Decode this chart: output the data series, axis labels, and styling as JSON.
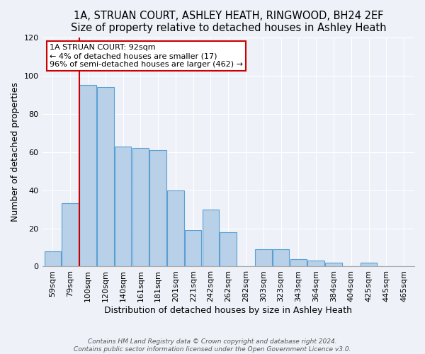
{
  "title": "1A, STRUAN COURT, ASHLEY HEATH, RINGWOOD, BH24 2EF",
  "subtitle": "Size of property relative to detached houses in Ashley Heath",
  "xlabel": "Distribution of detached houses by size in Ashley Heath",
  "ylabel": "Number of detached properties",
  "categories": [
    "59sqm",
    "79sqm",
    "100sqm",
    "120sqm",
    "140sqm",
    "161sqm",
    "181sqm",
    "201sqm",
    "221sqm",
    "242sqm",
    "262sqm",
    "282sqm",
    "303sqm",
    "323sqm",
    "343sqm",
    "364sqm",
    "384sqm",
    "404sqm",
    "425sqm",
    "445sqm",
    "465sqm"
  ],
  "values": [
    8,
    33,
    95,
    94,
    63,
    62,
    61,
    40,
    19,
    30,
    18,
    0,
    9,
    9,
    4,
    3,
    2,
    0,
    2,
    0,
    0
  ],
  "bar_color": "#b8d0e8",
  "bar_edge_color": "#5a9fd4",
  "annotation_text_lines": [
    "1A STRUAN COURT: 92sqm",
    "← 4% of detached houses are smaller (17)",
    "96% of semi-detached houses are larger (462) →"
  ],
  "annotation_box_facecolor": "#ffffff",
  "annotation_box_edgecolor": "#cc0000",
  "red_line_color": "#cc0000",
  "ylim": [
    0,
    120
  ],
  "yticks": [
    0,
    20,
    40,
    60,
    80,
    100,
    120
  ],
  "title_fontsize": 10.5,
  "xlabel_fontsize": 9,
  "ylabel_fontsize": 9,
  "tick_fontsize": 8,
  "footnote1": "Contains HM Land Registry data © Crown copyright and database right 2024.",
  "footnote2": "Contains public sector information licensed under the Open Government Licence v3.0.",
  "background_color": "#eef2f8",
  "grid_color": "#ffffff"
}
